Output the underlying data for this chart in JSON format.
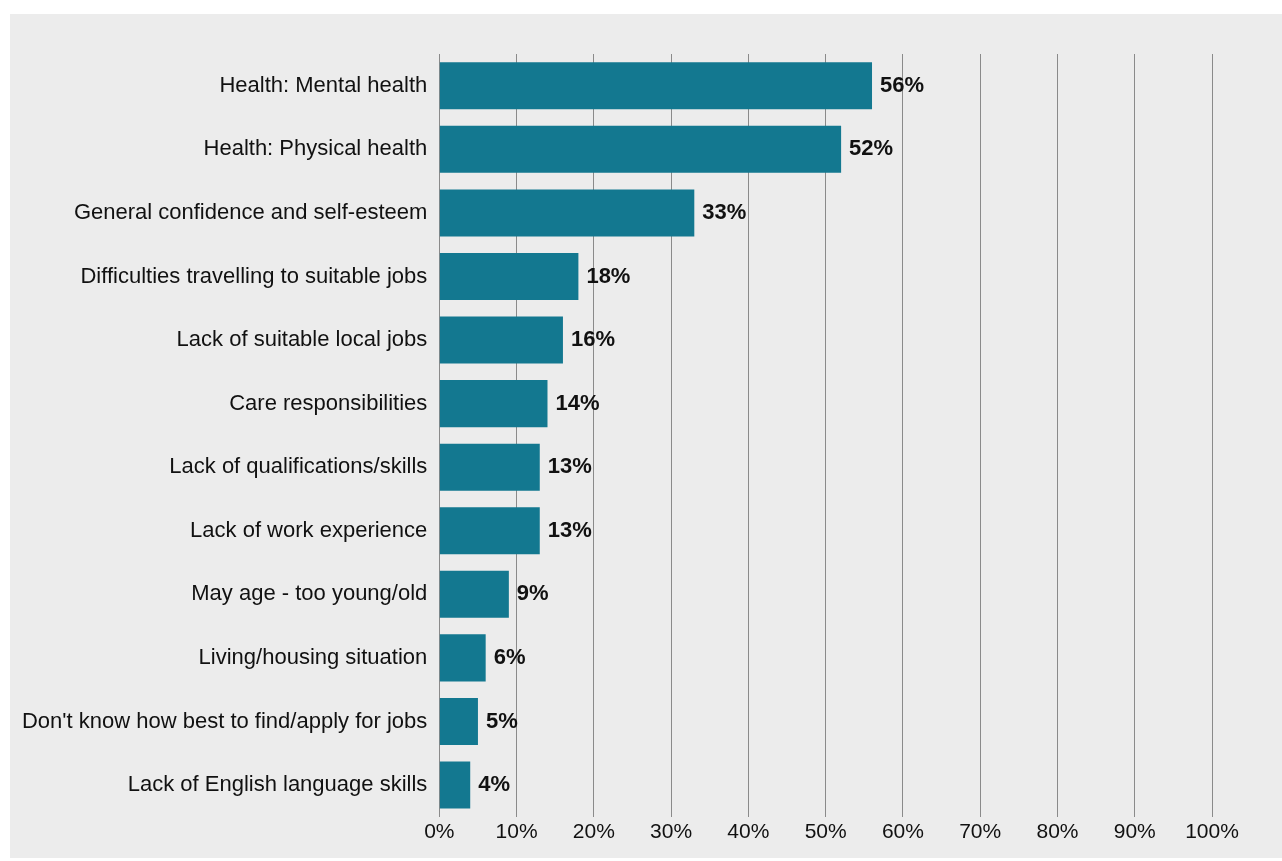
{
  "chart_data": {
    "type": "bar",
    "orientation": "horizontal",
    "categories": [
      "Health: Mental health",
      "Health: Physical health",
      "General confidence and self-esteem",
      "Difficulties travelling to suitable jobs",
      "Lack of suitable local jobs",
      "Care responsibilities",
      "Lack of qualifications/skills",
      "Lack of work experience",
      "May age - too young/old",
      "Living/housing situation",
      "Don't know how best to find/apply for jobs",
      "Lack of English language skills"
    ],
    "values": [
      56,
      52,
      33,
      18,
      16,
      14,
      13,
      13,
      9,
      6,
      5,
      4
    ],
    "value_labels": [
      "56%",
      "52%",
      "33%",
      "18%",
      "16%",
      "14%",
      "13%",
      "13%",
      "9%",
      "6%",
      "5%",
      "4%"
    ],
    "color": "#137890",
    "xlim": [
      0,
      100
    ],
    "xticks": [
      {
        "value": 0,
        "label": "0%"
      },
      {
        "value": 10,
        "label": "10%"
      },
      {
        "value": 20,
        "label": "20%"
      },
      {
        "value": 30,
        "label": "30%"
      },
      {
        "value": 40,
        "label": "40%"
      },
      {
        "value": 50,
        "label": "50%"
      },
      {
        "value": 60,
        "label": "60%"
      },
      {
        "value": 70,
        "label": "70%"
      },
      {
        "value": 80,
        "label": "80%"
      },
      {
        "value": 90,
        "label": "90%"
      },
      {
        "value": 100,
        "label": "100%"
      }
    ],
    "grid": "x",
    "legend": false
  }
}
